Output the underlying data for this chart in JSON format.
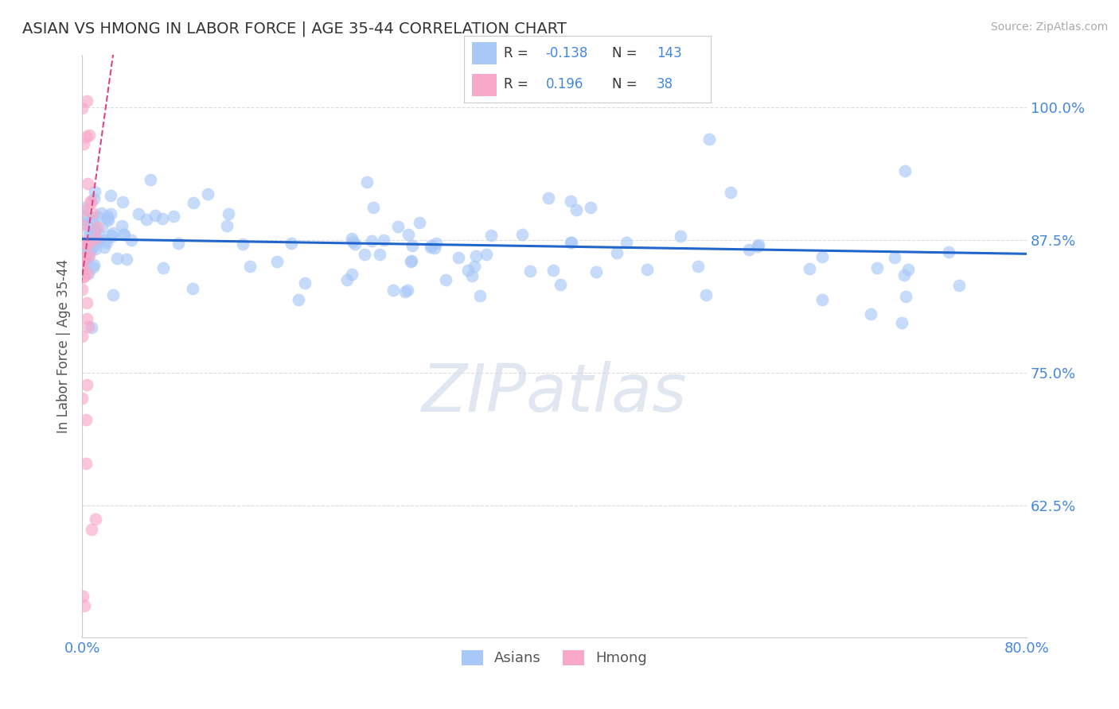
{
  "title": "ASIAN VS HMONG IN LABOR FORCE | AGE 35-44 CORRELATION CHART",
  "source": "Source: ZipAtlas.com",
  "ylabel": "In Labor Force | Age 35-44",
  "xlim": [
    0.0,
    0.8
  ],
  "ylim": [
    0.5,
    1.05
  ],
  "yticks": [
    0.625,
    0.75,
    0.875,
    1.0
  ],
  "ytick_labels": [
    "62.5%",
    "75.0%",
    "87.5%",
    "100.0%"
  ],
  "xticks": [
    0.0,
    0.1,
    0.2,
    0.3,
    0.4,
    0.5,
    0.6,
    0.7,
    0.8
  ],
  "xtick_labels": [
    "0.0%",
    "",
    "",
    "",
    "",
    "",
    "",
    "",
    "80.0%"
  ],
  "asian_R": -0.138,
  "asian_N": 143,
  "hmong_R": 0.196,
  "hmong_N": 38,
  "asian_color": "#a8c8f8",
  "hmong_color": "#f8a8c8",
  "asian_line_color": "#2266cc",
  "hmong_line_color": "#dd4488",
  "title_color": "#333333",
  "source_color": "#aaaaaa",
  "label_color": "#4488dd",
  "grid_color": "#dddddd",
  "background_color": "#ffffff",
  "watermark": "ZIPatlas",
  "watermark_color": "#ccd8e8"
}
